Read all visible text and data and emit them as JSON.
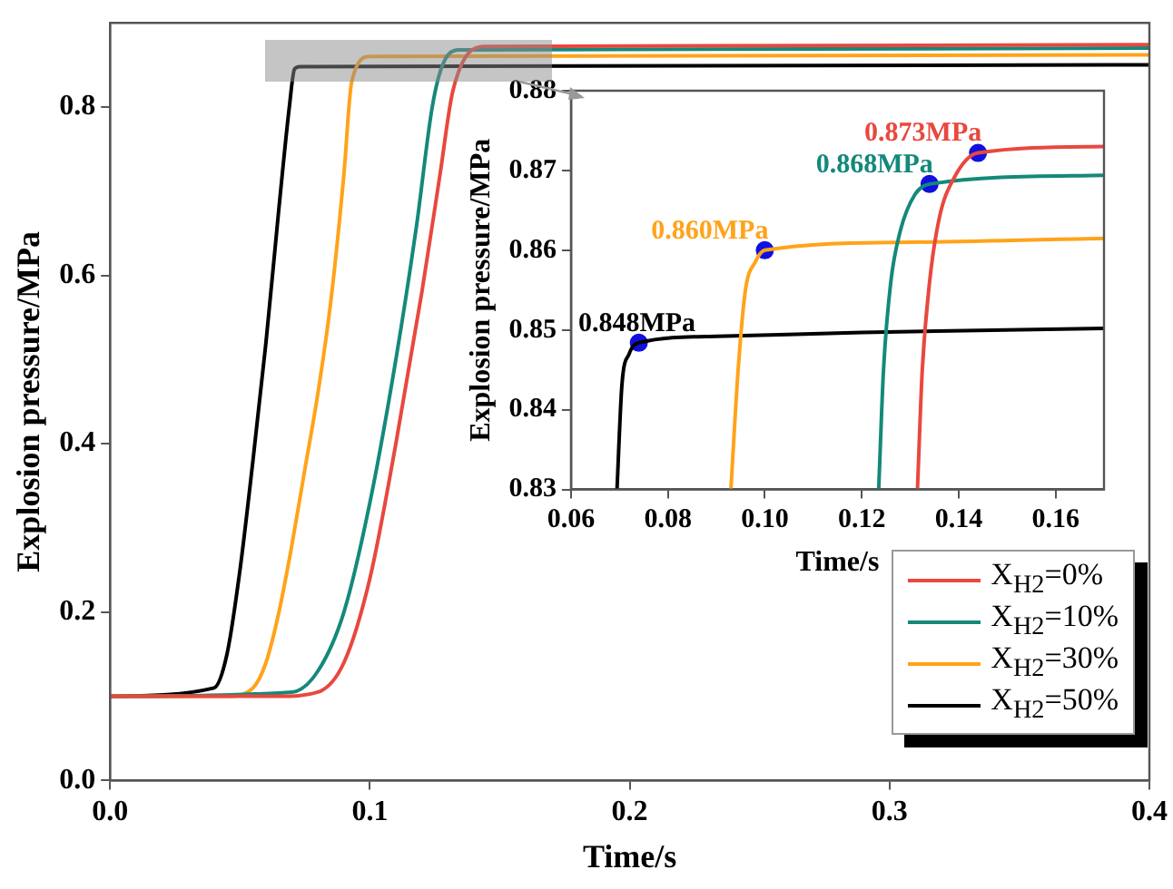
{
  "chart_data": [
    {
      "type": "line",
      "xlabel": "Time/s",
      "ylabel": "Explosion pressure/MPa",
      "xlim": [
        0,
        0.4
      ],
      "ylim": [
        0,
        0.9
      ],
      "xticks": [
        {
          "value": 0,
          "label": "0.0"
        },
        {
          "value": 0.1,
          "label": "0.1"
        },
        {
          "value": 0.2,
          "label": "0.2"
        },
        {
          "value": 0.3,
          "label": "0.3"
        },
        {
          "value": 0.4,
          "label": "0.4"
        }
      ],
      "yticks": [
        {
          "value": 0,
          "label": "0.0"
        },
        {
          "value": 0.2,
          "label": "0.2"
        },
        {
          "value": 0.4,
          "label": "0.4"
        },
        {
          "value": 0.6,
          "label": "0.6"
        },
        {
          "value": 0.8,
          "label": "0.8"
        }
      ],
      "legend": "bottom right",
      "marker": "none",
      "line_style": "solid",
      "series": [
        {
          "name": "X$_{H2}$=0%",
          "color": "#e8483f",
          "x": [
            0,
            0.065,
            0.08,
            0.09,
            0.1,
            0.11,
            0.12,
            0.127,
            0.132,
            0.144,
            0.4
          ],
          "values": [
            0.1,
            0.1,
            0.105,
            0.14,
            0.24,
            0.4,
            0.58,
            0.72,
            0.82,
            0.872,
            0.874
          ]
        },
        {
          "name": "X$_{H2}$=10%",
          "color": "#14897a",
          "x": [
            0,
            0.07,
            0.08,
            0.09,
            0.1,
            0.11,
            0.118,
            0.124,
            0.128,
            0.134,
            0.4
          ],
          "values": [
            0.1,
            0.105,
            0.13,
            0.2,
            0.33,
            0.5,
            0.66,
            0.8,
            0.85,
            0.868,
            0.87
          ]
        },
        {
          "name": "X$_{H2}$=30%",
          "color": "#ffa31a",
          "x": [
            0,
            0.045,
            0.055,
            0.06,
            0.065,
            0.07,
            0.075,
            0.08,
            0.085,
            0.09,
            0.093,
            0.1,
            0.4
          ],
          "values": [
            0.1,
            0.1,
            0.11,
            0.14,
            0.2,
            0.28,
            0.37,
            0.46,
            0.57,
            0.72,
            0.83,
            0.86,
            0.862
          ]
        },
        {
          "name": "X$_{H2}$=50%",
          "color": "#000000",
          "x": [
            0,
            0.04,
            0.045,
            0.05,
            0.055,
            0.06,
            0.065,
            0.069,
            0.071,
            0.073,
            0.4
          ],
          "values": [
            0.1,
            0.11,
            0.15,
            0.25,
            0.38,
            0.52,
            0.68,
            0.8,
            0.845,
            0.848,
            0.85
          ]
        }
      ]
    },
    {
      "type": "line",
      "xlabel": "Time/s",
      "ylabel": "Explosion pressure/MPa",
      "xlim": [
        0.06,
        0.17
      ],
      "ylim": [
        0.83,
        0.88
      ],
      "xticks": [
        0.06,
        0.08,
        {
          "value": 0.1,
          "label": "0.10"
        },
        0.12,
        0.14,
        0.16
      ],
      "yticks": [
        0.83,
        0.84,
        0.85,
        0.86,
        0.87,
        0.88
      ],
      "marker": "none",
      "line_style": "solid",
      "series": [
        {
          "color": "#e8483f",
          "x": [
            0.1315,
            0.1325,
            0.134,
            0.136,
            0.139,
            0.144,
            0.17
          ],
          "values": [
            0.83,
            0.845,
            0.856,
            0.864,
            0.869,
            0.8722,
            0.873
          ]
        },
        {
          "color": "#14897a",
          "x": [
            0.1235,
            0.1245,
            0.126,
            0.128,
            0.131,
            0.134,
            0.17
          ],
          "values": [
            0.83,
            0.845,
            0.856,
            0.8625,
            0.867,
            0.8683,
            0.8694
          ]
        },
        {
          "color": "#ffa31a",
          "x": [
            0.093,
            0.0945,
            0.096,
            0.098,
            0.1,
            0.13,
            0.17
          ],
          "values": [
            0.83,
            0.845,
            0.855,
            0.8585,
            0.86,
            0.861,
            0.8615
          ]
        },
        {
          "color": "#000000",
          "x": [
            0.0695,
            0.0705,
            0.072,
            0.074,
            0.09,
            0.12,
            0.17
          ],
          "values": [
            0.83,
            0.843,
            0.847,
            0.8484,
            0.8492,
            0.8497,
            0.8502
          ]
        },
        {
          "type": "scatter",
          "marker": "circle",
          "color": "#1010e0",
          "x": [
            0.144,
            0.134,
            0.1,
            0.074
          ],
          "values": [
            0.8722,
            0.8683,
            0.86,
            0.8484
          ]
        }
      ],
      "annotations": [
        {
          "text": "0.873MPa",
          "x": 0.144,
          "y": 0.8722
        },
        {
          "text": "0.868MPa",
          "x": 0.134,
          "y": 0.8683
        },
        {
          "text": "0.860MPa",
          "x": 0.1,
          "y": 0.86
        },
        {
          "text": "0.848MPa",
          "x": 0.074,
          "y": 0.8484
        }
      ]
    }
  ]
}
